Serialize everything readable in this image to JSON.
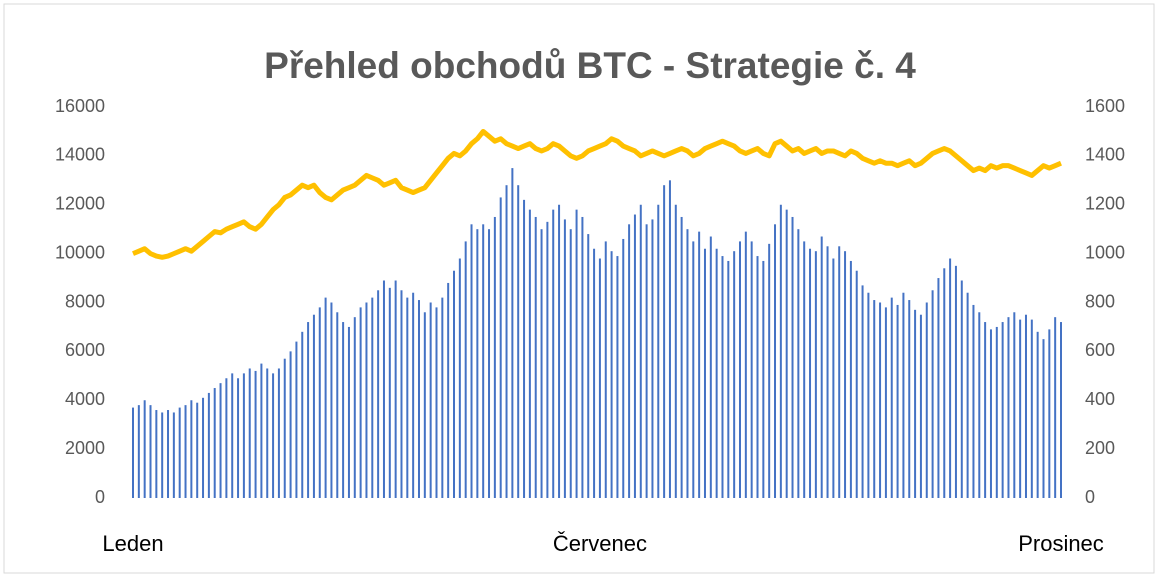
{
  "chart_data": {
    "type": "combo",
    "title": "Přehled obchodů BTC - Strategie č. 4",
    "categories": [
      "Leden",
      null,
      null,
      null,
      null,
      null,
      null,
      null,
      null,
      null,
      null,
      null,
      null,
      null,
      null,
      null,
      null,
      null,
      null,
      null,
      null,
      null,
      null,
      null,
      null,
      null,
      null,
      null,
      null,
      null,
      null,
      null,
      null,
      null,
      null,
      null,
      null,
      null,
      null,
      null,
      null,
      null,
      null,
      null,
      null,
      null,
      null,
      null,
      null,
      null,
      null,
      null,
      null,
      null,
      null,
      null,
      null,
      null,
      null,
      null,
      null,
      null,
      null,
      null,
      null,
      null,
      null,
      null,
      null,
      null,
      null,
      null,
      null,
      null,
      null,
      null,
      null,
      null,
      null,
      null,
      "Červenec",
      null,
      null,
      null,
      null,
      null,
      null,
      null,
      null,
      null,
      null,
      null,
      null,
      null,
      null,
      null,
      null,
      null,
      null,
      null,
      null,
      null,
      null,
      null,
      null,
      null,
      null,
      null,
      null,
      null,
      null,
      null,
      null,
      null,
      null,
      null,
      null,
      null,
      null,
      null,
      null,
      null,
      null,
      null,
      null,
      null,
      null,
      null,
      null,
      null,
      null,
      null,
      null,
      null,
      null,
      null,
      null,
      null,
      null,
      null,
      null,
      null,
      null,
      null,
      null,
      null,
      null,
      null,
      null,
      null,
      null,
      null,
      null,
      null,
      null,
      null,
      null,
      null,
      null,
      "Prosinec"
    ],
    "series": [
      {
        "type": "bar",
        "color": "#4472c4",
        "values": [
          3700,
          3800,
          4000,
          3800,
          3600,
          3500,
          3600,
          3500,
          3700,
          3800,
          4000,
          3900,
          4100,
          4300,
          4500,
          4700,
          4900,
          5100,
          4900,
          5100,
          5300,
          5200,
          5500,
          5300,
          5100,
          5300,
          5700,
          6000,
          6400,
          6800,
          7200,
          7500,
          7800,
          8200,
          8000,
          7600,
          7200,
          7000,
          7400,
          7800,
          8000,
          8200,
          8500,
          8900,
          8600,
          8900,
          8500,
          8200,
          8400,
          8100,
          7600,
          8000,
          7800,
          8200,
          8800,
          9300,
          9800,
          10500,
          11200,
          11000,
          11200,
          11000,
          11500,
          12300,
          12800,
          13500,
          12800,
          12200,
          11800,
          11500,
          11000,
          11300,
          11800,
          12000,
          11400,
          11000,
          11800,
          11500,
          10800,
          10200,
          9800,
          10500,
          10100,
          9900,
          10600,
          11200,
          11600,
          12000,
          11200,
          11400,
          12000,
          12800,
          13000,
          12000,
          11500,
          11000,
          10500,
          10900,
          10200,
          10700,
          10200,
          9900,
          9700,
          10100,
          10500,
          10900,
          10500,
          9900,
          9700,
          10400,
          11200,
          12000,
          11800,
          11500,
          11000,
          10500,
          10200,
          10100,
          10700,
          10300,
          9800,
          10300,
          10100,
          9700,
          9300,
          8700,
          8400,
          8100,
          8000,
          7800,
          8200,
          7900,
          8400,
          8100,
          7700,
          7500,
          8000,
          8500,
          9000,
          9400,
          9800,
          9500,
          8900,
          8400,
          7900,
          7600,
          7200,
          6900,
          7000,
          7200,
          7400,
          7600,
          7300,
          7500,
          7300,
          6800,
          6500,
          6900,
          7400,
          7200
        ]
      },
      {
        "type": "line",
        "color": "#ffc000",
        "axis": "y2",
        "values": [
          1000,
          1010,
          1020,
          1000,
          990,
          985,
          990,
          1000,
          1010,
          1020,
          1010,
          1030,
          1050,
          1070,
          1090,
          1085,
          1100,
          1110,
          1120,
          1130,
          1110,
          1100,
          1120,
          1150,
          1180,
          1200,
          1230,
          1240,
          1260,
          1280,
          1270,
          1280,
          1250,
          1230,
          1220,
          1240,
          1260,
          1270,
          1280,
          1300,
          1320,
          1310,
          1300,
          1280,
          1290,
          1300,
          1270,
          1260,
          1250,
          1260,
          1270,
          1300,
          1330,
          1360,
          1390,
          1410,
          1400,
          1420,
          1450,
          1470,
          1500,
          1480,
          1460,
          1470,
          1450,
          1440,
          1430,
          1440,
          1450,
          1430,
          1420,
          1430,
          1450,
          1440,
          1420,
          1400,
          1390,
          1400,
          1420,
          1430,
          1440,
          1450,
          1470,
          1460,
          1440,
          1430,
          1420,
          1400,
          1410,
          1420,
          1410,
          1400,
          1410,
          1420,
          1430,
          1420,
          1400,
          1410,
          1430,
          1440,
          1450,
          1460,
          1450,
          1440,
          1420,
          1410,
          1420,
          1430,
          1410,
          1400,
          1450,
          1460,
          1440,
          1420,
          1430,
          1410,
          1420,
          1430,
          1410,
          1420,
          1420,
          1410,
          1400,
          1420,
          1410,
          1390,
          1380,
          1370,
          1380,
          1370,
          1370,
          1360,
          1370,
          1380,
          1360,
          1370,
          1390,
          1410,
          1420,
          1430,
          1420,
          1400,
          1380,
          1360,
          1340,
          1350,
          1340,
          1360,
          1350,
          1360,
          1360,
          1350,
          1340,
          1330,
          1320,
          1340,
          1360,
          1350,
          1360,
          1370
        ]
      }
    ],
    "ylim": [
      0,
      16000
    ],
    "yticks": [
      0,
      2000,
      4000,
      6000,
      8000,
      10000,
      12000,
      14000,
      16000
    ],
    "y2lim": [
      0,
      1600
    ],
    "y2ticks": [
      0,
      200,
      400,
      600,
      800,
      1000,
      1200,
      1400,
      1600
    ]
  }
}
